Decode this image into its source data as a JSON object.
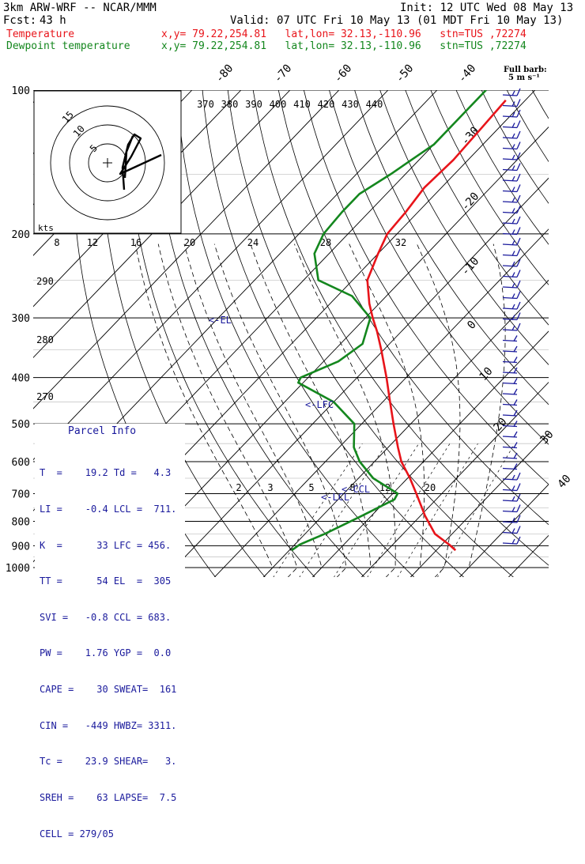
{
  "header": {
    "model": "3km ARW-WRF -- NCAR/MMM",
    "init": "Init: 12 UTC Wed 08 May 13",
    "fcst_label": "Fcst:",
    "fcst_value": "43 h",
    "valid": "Valid: 07 UTC Fri 10 May 13 (01 MDT Fri 10 May 13)",
    "temp_label": "Temperature",
    "temp_info": "x,y= 79.22,254.81   lat,lon= 32.13,-110.96   stn=TUS ,72274",
    "dew_label": "Dewpoint temperature",
    "dew_info": "x,y= 79.22,254.81   lat,lon= 32.13,-110.96   stn=TUS ,72274"
  },
  "barb_key": {
    "line1": "Full barb:",
    "line2": "5 m s⁻¹"
  },
  "colors": {
    "temperature": "#e8141a",
    "dewpoint": "#14871e",
    "parcel": "#1a1a9c",
    "hodograph": "#000000"
  },
  "chart_data": {
    "type": "line",
    "title": "",
    "y_axis_type": "log pressure",
    "y_unit": "hPa",
    "pressure_levels": [
      "100",
      "200",
      "300",
      "400",
      "500",
      "600",
      "700",
      "800",
      "900",
      "1000"
    ],
    "isotherm_top_labels": [
      "-80",
      "-70",
      "-60",
      "-50",
      "-40"
    ],
    "isotherm_side_labels": [
      "-30",
      "-20",
      "-10",
      "0",
      "10",
      "20",
      "30",
      "40"
    ],
    "theta_labels": [
      "370",
      "380",
      "390",
      "400",
      "410",
      "420",
      "430",
      "440"
    ],
    "mixing_labels_upper": [
      "8",
      "12",
      "16",
      "20",
      "24",
      "28",
      "32"
    ],
    "mixing_labels_lower": [
      "2",
      "3",
      "5",
      "8",
      "12",
      "20"
    ],
    "theta_side_labels": [
      "290",
      "280",
      "270"
    ],
    "series": [
      {
        "name": "Temperature",
        "points": [
          [
            920,
            23.9
          ],
          [
            895,
            21.5
          ],
          [
            850,
            16.5
          ],
          [
            780,
            11.0
          ],
          [
            700,
            4.8
          ],
          [
            650,
            0.5
          ],
          [
            600,
            -4.5
          ],
          [
            560,
            -8.0
          ],
          [
            500,
            -13.5
          ],
          [
            450,
            -18.5
          ],
          [
            400,
            -24.0
          ],
          [
            350,
            -30.5
          ],
          [
            320,
            -35.0
          ],
          [
            300,
            -38.5
          ],
          [
            280,
            -42.0
          ],
          [
            250,
            -47.0
          ],
          [
            220,
            -50.0
          ],
          [
            200,
            -52.0
          ],
          [
            180,
            -52.5
          ],
          [
            160,
            -53.5
          ],
          [
            140,
            -53.0
          ],
          [
            120,
            -53.5
          ],
          [
            105,
            -54.0
          ]
        ]
      },
      {
        "name": "Dewpoint temperature",
        "points": [
          [
            920,
            -9.5
          ],
          [
            895,
            -9.0
          ],
          [
            850,
            -6.0
          ],
          [
            780,
            -2.0
          ],
          [
            720,
            1.5
          ],
          [
            700,
            1.0
          ],
          [
            650,
            -7.0
          ],
          [
            600,
            -13.0
          ],
          [
            560,
            -17.0
          ],
          [
            500,
            -21.5
          ],
          [
            450,
            -30.0
          ],
          [
            410,
            -41.0
          ],
          [
            400,
            -41.5
          ],
          [
            370,
            -37.0
          ],
          [
            340,
            -35.5
          ],
          [
            300,
            -39.0
          ],
          [
            270,
            -47.0
          ],
          [
            250,
            -57.0
          ],
          [
            220,
            -63.0
          ],
          [
            200,
            -65.0
          ],
          [
            180,
            -65.5
          ],
          [
            165,
            -65.5
          ],
          [
            150,
            -63.0
          ],
          [
            130,
            -60.0
          ],
          [
            110,
            -60.0
          ],
          [
            100,
            -60.0
          ]
        ]
      }
    ],
    "annotations": {
      "el": "<-EL",
      "lfc": "<-LFC",
      "ccl": "<-CCL",
      "lcl": "<-LCL"
    },
    "hodograph": {
      "units": "kts",
      "rings": [
        "5",
        "10",
        "15"
      ]
    }
  },
  "parcel_info": {
    "title": "Parcel Info",
    "rows": [
      "T  =    19.2 Td =   4.3",
      "LI =    -0.4 LCL =  711.",
      "K  =      33 LFC = 456.",
      "TT =      54 EL  =  305",
      "SVI =   -0.8 CCL = 683.",
      "PW =    1.76 YGP =  0.0",
      "CAPE =    30 SWEAT=  161",
      "CIN =   -449 HWBZ= 3311.",
      "Tc =    23.9 SHEAR=   3.",
      "SREH =    63 LAPSE=  7.5",
      "CELL = 279/05"
    ]
  }
}
